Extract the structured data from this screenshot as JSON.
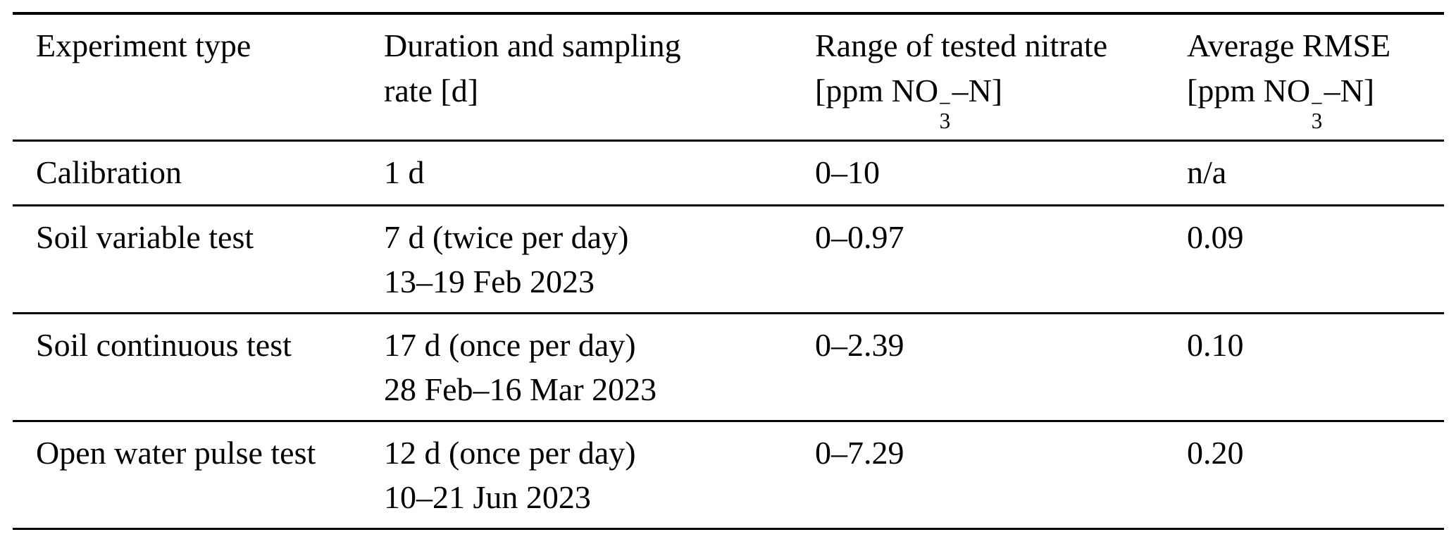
{
  "page": {
    "background_color": "#ffffff",
    "text_color": "#000000",
    "rule_color": "#000000"
  },
  "table": {
    "name": "experiment-summary-table",
    "columns": [
      {
        "id": "experiment-type",
        "line1": "Experiment type",
        "line2": ""
      },
      {
        "id": "duration-sampling-rate",
        "line1": "Duration and sampling",
        "line2": "rate [d]"
      },
      {
        "id": "range-tested-nitrate",
        "line1": "Range of tested nitrate",
        "unit": {
          "prefix": "[ppm NO",
          "sup": "−",
          "sub": "3",
          "suffix": "–N]"
        }
      },
      {
        "id": "average-rmse",
        "line1": "Average RMSE",
        "unit": {
          "prefix": "[ppm NO",
          "sup": "−",
          "sub": "3",
          "suffix": "–N]"
        }
      }
    ],
    "rows": [
      {
        "experiment_type": "Calibration",
        "duration_line1": "1 d",
        "duration_line2": "",
        "range": "0–10",
        "rmse": "n/a"
      },
      {
        "experiment_type": "Soil variable test",
        "duration_line1": "7 d (twice per day)",
        "duration_line2": "13–19 Feb 2023",
        "range": "0–0.97",
        "rmse": "0.09"
      },
      {
        "experiment_type": "Soil continuous test",
        "duration_line1": "17 d (once per day)",
        "duration_line2": "28 Feb–16 Mar 2023",
        "range": "0–2.39",
        "rmse": "0.10"
      },
      {
        "experiment_type": "Open water pulse test",
        "duration_line1": "12 d (once per day)",
        "duration_line2": "10–21 Jun 2023",
        "range": "0–7.29",
        "rmse": "0.20"
      }
    ]
  }
}
